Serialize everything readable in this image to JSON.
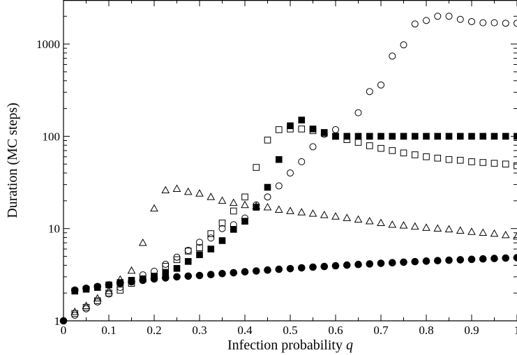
{
  "chart_data": {
    "type": "scatter",
    "title": "",
    "xlabel": "Infection probability",
    "xlabel_var": "q",
    "ylabel": "Duration (MC steps)",
    "xlim": [
      0,
      1
    ],
    "ylim": [
      1,
      3000
    ],
    "yscale": "log",
    "grid": false,
    "legend": "none",
    "x_ticks": [
      "0",
      "0.1",
      "0.2",
      "0.3",
      "0.4",
      "0.5",
      "0.6",
      "0.7",
      "0.8",
      "0.9",
      "1"
    ],
    "y_ticks": [
      "1",
      "10",
      "100",
      "1000"
    ],
    "x": [
      0.0,
      0.025,
      0.05,
      0.075,
      0.1,
      0.125,
      0.15,
      0.175,
      0.2,
      0.225,
      0.25,
      0.275,
      0.3,
      0.325,
      0.35,
      0.375,
      0.4,
      0.425,
      0.45,
      0.475,
      0.5,
      0.525,
      0.55,
      0.575,
      0.6,
      0.625,
      0.65,
      0.675,
      0.7,
      0.725,
      0.75,
      0.775,
      0.8,
      0.825,
      0.85,
      0.875,
      0.9,
      0.925,
      0.95,
      0.975,
      1.0
    ],
    "series": [
      {
        "marker": "circle-filled",
        "color": "#000000",
        "values": [
          1.0,
          2.15,
          2.25,
          2.35,
          2.45,
          2.55,
          2.65,
          2.75,
          2.85,
          2.92,
          3.0,
          3.05,
          3.1,
          3.17,
          3.25,
          3.32,
          3.4,
          3.47,
          3.55,
          3.62,
          3.68,
          3.75,
          3.82,
          3.88,
          3.95,
          4.02,
          4.08,
          4.14,
          4.2,
          4.26,
          4.32,
          4.38,
          4.44,
          4.49,
          4.54,
          4.59,
          4.64,
          4.69,
          4.74,
          4.79,
          4.84
        ]
      },
      {
        "marker": "square-filled",
        "color": "#000000",
        "values": [
          null,
          2.1,
          2.2,
          2.3,
          2.45,
          2.6,
          2.75,
          2.85,
          3.0,
          3.3,
          3.7,
          4.4,
          5.2,
          6.0,
          7.4,
          9.8,
          12.0,
          17.0,
          28.0,
          56.0,
          130.0,
          150.0,
          120.0,
          110.0,
          100.0,
          100.0,
          100.0,
          100.0,
          100.0,
          100.0,
          100.0,
          100.0,
          100.0,
          100.0,
          100.0,
          100.0,
          100.0,
          100.0,
          100.0,
          100.0,
          100.0
        ]
      },
      {
        "marker": "square-open",
        "color": "#000000",
        "values": [
          null,
          1.2,
          1.4,
          1.65,
          2.0,
          2.15,
          2.55,
          2.85,
          3.05,
          3.9,
          4.6,
          5.7,
          6.2,
          8.8,
          11.5,
          15.5,
          22.0,
          46.0,
          91.0,
          118.0,
          120.0,
          120.0,
          115.0,
          108.0,
          100.0,
          92.0,
          86.0,
          79.0,
          74.0,
          70.0,
          66.0,
          63.0,
          60.0,
          58.0,
          56.0,
          55.0,
          53.0,
          52.0,
          51.0,
          50.0,
          48.0
        ]
      },
      {
        "marker": "circle-open",
        "color": "#000000",
        "values": [
          null,
          1.15,
          1.35,
          1.6,
          1.95,
          2.3,
          2.7,
          3.15,
          3.45,
          4.1,
          4.9,
          5.8,
          7.1,
          7.9,
          10.0,
          11.0,
          13.0,
          18.0,
          22.0,
          29.0,
          40.0,
          53.0,
          77.0,
          105.0,
          118.0,
          null,
          180.0,
          305.0,
          360.0,
          740.0,
          980.0,
          1650.0,
          1800.0,
          2000.0,
          2000.0,
          1850.0,
          1750.0,
          1700.0,
          1700.0,
          1680.0,
          1680.0
        ]
      },
      {
        "marker": "triangle-open",
        "color": "#000000",
        "values": [
          null,
          1.25,
          1.45,
          1.75,
          2.1,
          2.8,
          3.5,
          7.0,
          16.5,
          26.0,
          27.0,
          25.0,
          24.0,
          22.0,
          20.0,
          19.0,
          18.0,
          17.5,
          17.0,
          16.0,
          15.5,
          15.0,
          14.5,
          14.0,
          13.5,
          13.0,
          12.5,
          12.0,
          11.5,
          11.0,
          10.8,
          10.5,
          10.2,
          10.0,
          9.8,
          9.5,
          9.2,
          9.0,
          8.8,
          8.5,
          8.2
        ]
      }
    ]
  }
}
